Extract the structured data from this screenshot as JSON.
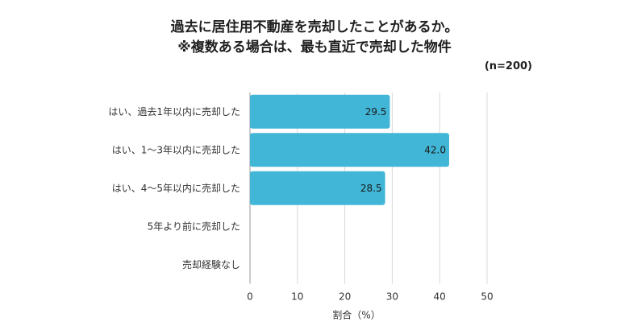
{
  "chart_data": {
    "type": "bar",
    "orientation": "horizontal",
    "title_lines": [
      "過去に居住用不動産を売却したことがあるか。",
      "※複数ある場合は、最も直近で売却した物件"
    ],
    "note": "(n=200)",
    "categories": [
      "はい、過去1年以内に売却した",
      "はい、1〜3年以内に売却した",
      "はい、4〜5年以内に売却した",
      "5年より前に売却した",
      "売却経験なし"
    ],
    "values": [
      29.5,
      42.0,
      28.5,
      null,
      null
    ],
    "data_labels": [
      "29.5",
      "42.0",
      "28.5",
      "",
      ""
    ],
    "xlabel": "割合（%）",
    "ylabel": "",
    "xlim": [
      0,
      50
    ],
    "xticks": [
      0,
      10,
      20,
      30,
      40,
      50
    ],
    "grid": true,
    "bar_color": "#41b6d6"
  }
}
